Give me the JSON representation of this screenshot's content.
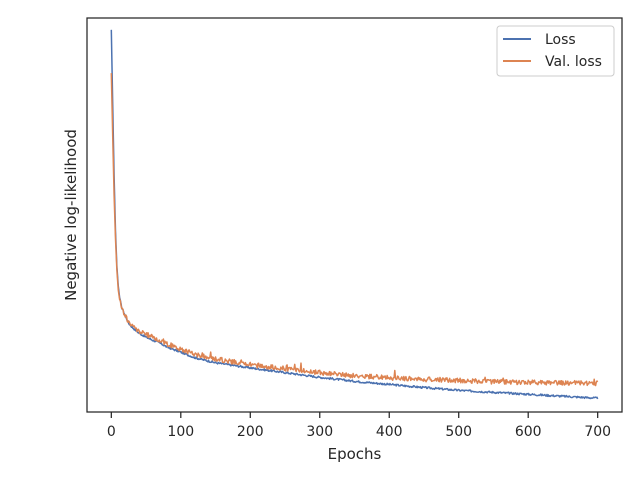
{
  "chart_data": {
    "type": "line",
    "xlabel": "Epochs",
    "ylabel": "Negative log-likelihood",
    "xlim": [
      -35,
      735
    ],
    "ylim": [
      0,
      1
    ],
    "xticks": [
      0,
      100,
      200,
      300,
      400,
      500,
      600,
      700
    ],
    "yticks_visible": false,
    "grid": false,
    "legend_position": "top-right",
    "series": [
      {
        "name": "Loss",
        "color": "#4c72b0",
        "x": [
          0,
          2,
          4,
          6,
          8,
          10,
          12,
          15,
          20,
          25,
          30,
          40,
          50,
          60,
          70,
          80,
          100,
          120,
          150,
          200,
          250,
          300,
          350,
          400,
          450,
          500,
          550,
          600,
          650,
          700
        ],
        "y": [
          0.97,
          0.78,
          0.6,
          0.46,
          0.37,
          0.32,
          0.29,
          0.265,
          0.245,
          0.225,
          0.215,
          0.2,
          0.19,
          0.182,
          0.175,
          0.165,
          0.152,
          0.138,
          0.125,
          0.112,
          0.1,
          0.088,
          0.078,
          0.07,
          0.062,
          0.055,
          0.05,
          0.045,
          0.04,
          0.035
        ]
      },
      {
        "name": "Val. loss",
        "color": "#dd8452",
        "x": [
          0,
          2,
          4,
          6,
          8,
          10,
          12,
          15,
          20,
          25,
          30,
          40,
          50,
          60,
          70,
          80,
          100,
          120,
          150,
          200,
          250,
          300,
          350,
          400,
          450,
          500,
          550,
          600,
          650,
          700
        ],
        "y": [
          0.86,
          0.7,
          0.55,
          0.44,
          0.36,
          0.31,
          0.285,
          0.263,
          0.245,
          0.228,
          0.218,
          0.205,
          0.197,
          0.19,
          0.182,
          0.173,
          0.16,
          0.147,
          0.135,
          0.12,
          0.11,
          0.1,
          0.092,
          0.087,
          0.083,
          0.08,
          0.077,
          0.075,
          0.074,
          0.073
        ]
      }
    ]
  }
}
